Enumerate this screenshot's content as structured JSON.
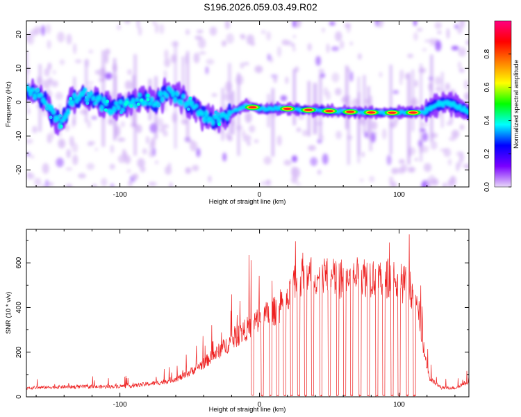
{
  "title": "S196.2026.059.03.49.R02",
  "chart_data": [
    {
      "type": "heatmap",
      "xlabel": "Height of straight line (km)",
      "ylabel": "Frequency (Hz)",
      "xlim": [
        -167,
        150
      ],
      "ylim": [
        -25,
        24
      ],
      "xticks": [
        -100,
        0,
        100
      ],
      "yticks": [
        -20,
        -10,
        0,
        10,
        20
      ],
      "colorbar": {
        "label": "Normalized spectral amplitude",
        "range": [
          0,
          1
        ],
        "ticks": [
          0.0,
          0.2,
          0.4,
          0.6,
          0.8
        ],
        "tick_labels": [
          "0.0",
          "0.2",
          "0.4",
          "0.6",
          "0.8"
        ],
        "colormap": [
          "#e8d8f8",
          "#7a00ff",
          "#0000ff",
          "#00ffff",
          "#00ff00",
          "#ffff00",
          "#ff8000",
          "#ff0000",
          "#ff0080"
        ]
      },
      "ridge": {
        "x": [
          -167,
          -160,
          -155,
          -148,
          -142,
          -135,
          -125,
          -115,
          -105,
          -95,
          -85,
          -75,
          -65,
          -55,
          -45,
          -40,
          -35,
          -30,
          -25,
          -20,
          -15,
          -10,
          0,
          15,
          30,
          45,
          60,
          75,
          90,
          105,
          118,
          125,
          135,
          145,
          150
        ],
        "freq": [
          4,
          3,
          1,
          -4,
          -6,
          0,
          2,
          0,
          -2,
          -1,
          1,
          0,
          3,
          1,
          -2,
          -4,
          -5,
          -5,
          -4,
          -3,
          -2,
          -1,
          -2,
          -1.8,
          -2.2,
          -2.5,
          -2.8,
          -3,
          -3.1,
          -3.1,
          -3,
          -1,
          0,
          -2,
          -3
        ],
        "strong_segments": [
          -10,
          15,
          30,
          45,
          60,
          75,
          90,
          105
        ]
      }
    },
    {
      "type": "line",
      "xlabel": "Height of straight line (km)",
      "ylabel": "SNR (10 * v/v)",
      "xlim": [
        -167,
        150
      ],
      "ylim": [
        0,
        750
      ],
      "xticks": [
        -100,
        0,
        100
      ],
      "yticks": [
        0,
        200,
        400,
        600
      ],
      "series": [
        {
          "name": "SNR",
          "color": "#ee2222",
          "x": [
            -167,
            -140,
            -110,
            -90,
            -70,
            -55,
            -40,
            -30,
            -20,
            -10,
            0,
            10,
            20,
            25,
            35,
            45,
            55,
            65,
            75,
            85,
            95,
            105,
            110,
            115,
            118,
            122,
            130,
            140,
            150
          ],
          "values": [
            40,
            45,
            45,
            50,
            65,
            90,
            150,
            200,
            250,
            300,
            350,
            380,
            420,
            500,
            560,
            530,
            530,
            530,
            540,
            540,
            530,
            500,
            470,
            350,
            200,
            80,
            40,
            40,
            70
          ],
          "dropouts_x": [
            -5,
            2,
            8,
            13,
            18,
            23,
            28,
            33,
            38,
            44,
            50,
            56,
            61,
            66,
            72,
            78,
            84,
            89,
            95,
            100,
            106,
            111
          ]
        }
      ]
    }
  ]
}
